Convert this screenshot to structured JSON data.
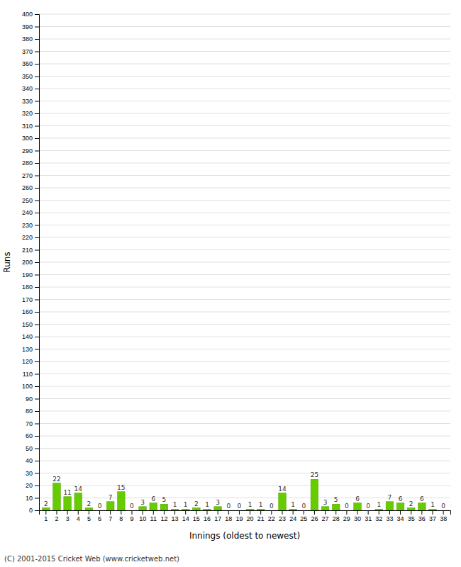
{
  "chart_data": {
    "type": "bar",
    "xlabel": "Innings (oldest to newest)",
    "ylabel": "Runs",
    "categories": [
      "1",
      "2",
      "3",
      "4",
      "5",
      "6",
      "7",
      "8",
      "9",
      "10",
      "11",
      "12",
      "13",
      "14",
      "15",
      "16",
      "17",
      "18",
      "19",
      "20",
      "21",
      "22",
      "23",
      "24",
      "25",
      "26",
      "27",
      "28",
      "29",
      "30",
      "31",
      "32",
      "33",
      "34",
      "35",
      "36",
      "37",
      "38"
    ],
    "values": [
      2,
      22,
      11,
      14,
      2,
      0,
      7,
      15,
      0,
      3,
      6,
      5,
      1,
      1,
      2,
      1,
      3,
      0,
      0,
      1,
      1,
      0,
      14,
      1,
      0,
      25,
      3,
      5,
      0,
      6,
      0,
      1,
      7,
      6,
      2,
      6,
      1,
      0
    ],
    "color": "#66cc00",
    "ylim": [
      0,
      400
    ],
    "yticks": [
      0,
      10,
      20,
      30,
      40,
      50,
      60,
      70,
      80,
      90,
      100,
      110,
      120,
      130,
      140,
      150,
      160,
      170,
      180,
      190,
      200,
      210,
      220,
      230,
      240,
      250,
      260,
      270,
      280,
      290,
      300,
      310,
      320,
      330,
      340,
      350,
      360,
      370,
      380,
      390,
      400
    ],
    "grid": true,
    "data_labels": true,
    "annotation": "(C) 2001-2015 Cricket Web (www.cricketweb.net)"
  }
}
